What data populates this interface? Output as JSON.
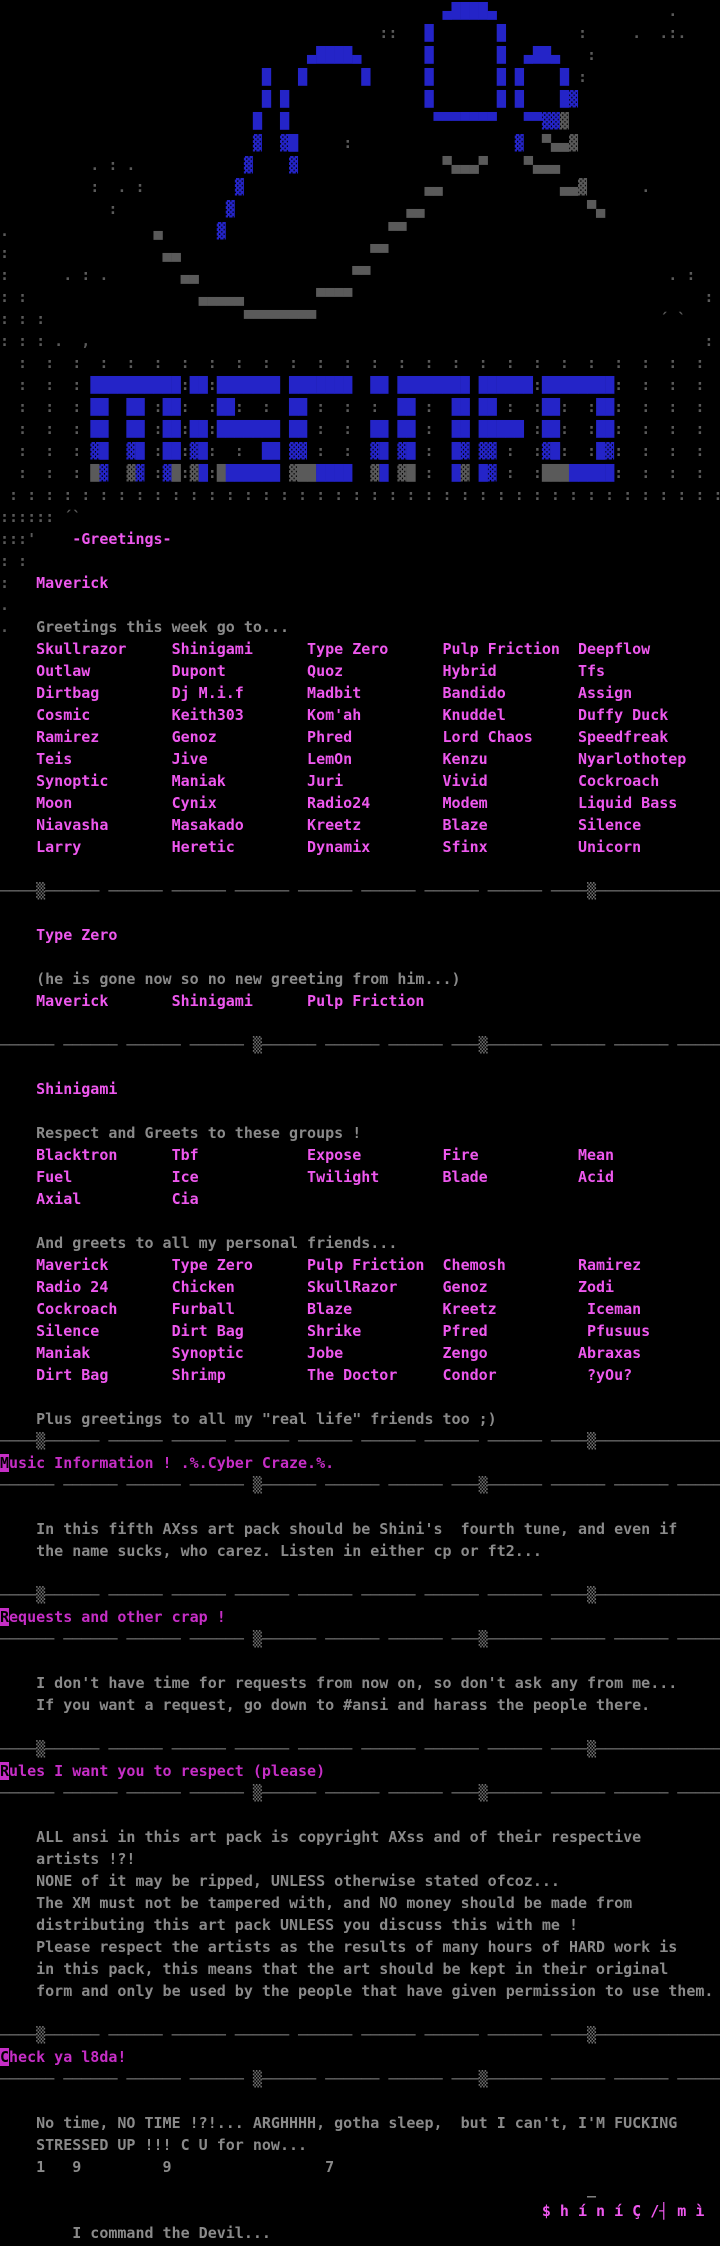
{
  "colors": {
    "background": "#000000",
    "art_blue": "#2424c8",
    "art_grey": "#5a5a5a",
    "text_grey": "#8a8a8a",
    "divider_grey": "#6f6f6f",
    "magenta": "#ee58ee",
    "magenta_deep": "#c62ec6"
  },
  "banner": {
    "title": "MiSC iNFO",
    "grid_unit": "  :",
    "grid_repeat": 26,
    "dense_unit": " :",
    "dense_repeat": 40,
    "letters": [
      "          NNNNNNNNNN NN NNNNNNN NNNNNNN  NN NNNNNNNN NNNNNN NNNNNNNN",
      "          NN  NN  NN    NN      NN          NN    NN NN     NN    NN",
      "          NN  NN  NN NN NNNNNNN NN       NN NN    NN NNNNN  NN    NN",
      "          nN  nN  NN nN      NN nn       nN nN    Nn nn     nN    Nn",
      "          Gn  gn  nG gN GNNNNNN gGGNNNN  gN gG    Ng Nn     GGGNNNNN"
    ]
  },
  "legend": {
    "N": [
      "█",
      "cb"
    ],
    "n": [
      "▓",
      "cb"
    ],
    "M": [
      "▀",
      "cb"
    ],
    "W": [
      "▄",
      "cb"
    ],
    "G": [
      "█",
      "ca"
    ],
    "g": [
      "▓",
      "ca"
    ],
    "T": [
      "▀",
      "ca"
    ],
    "U": [
      "▄",
      "ca"
    ]
  },
  "dividers": {
    "A": "────▒────── ────── ────── ────── ────── ────── ────── ────── ────▒──────────────",
    "B": "────── ────── ────── ────── ▒────── ────── ────── ───▒────── ────── ────── ─────"
  },
  "rows": [
    {
      "k": "a",
      "n": "doodle-art-line",
      "v": "                                                 WNNNNW                   ."
    },
    {
      "k": "a",
      "n": "doodle-art-line",
      "v": "                                          ::   N       N        :     .  .:."
    },
    {
      "k": "a",
      "n": "doodle-art-line",
      "v": "                                  WNNNNW       N       N  WNNW   :"
    },
    {
      "k": "a",
      "n": "doodle-art-line",
      "v": "                             N   N      N      N       N N    N :"
    },
    {
      "k": "a",
      "n": "doodle-art-line",
      "v": "                             N N               N       N N    Nn"
    },
    {
      "k": "a",
      "n": "doodle-art-line",
      "v": "                            N  N                MMMMMMM   MMnng"
    },
    {
      "k": "a",
      "n": "doodle-art-line",
      "v": "                            n  nN     :                  n  TUUg"
    },
    {
      "k": "a",
      "n": "doodle-art-line",
      "v": "          . : .            n    n                TUUUT    TUUU"
    },
    {
      "k": "a",
      "n": "doodle-art-line",
      "v": "          :  . :          n                    UU             UUg      ."
    },
    {
      "k": "a",
      "n": "doodle-art-line",
      "v": "            :            n                   UU                  TU"
    },
    {
      "k": "a",
      "n": "doodle-art-line",
      "v": ".                U      n                  TT"
    },
    {
      "k": "a",
      "n": "doodle-art-line",
      "v": ":                 UU                     TT"
    },
    {
      "k": "a",
      "n": "doodle-art-line",
      "v": ":      . : .        UU                 TT                                 . :"
    },
    {
      "k": "a",
      "n": "doodle-art-line",
      "v": ": :                   UUUUU        TTTT                                       :"
    },
    {
      "k": "a",
      "n": "doodle-art-line",
      "v": ": : :                      TTTTTTTT                                      ´ `"
    },
    {
      "k": "a",
      "n": "doodle-art-line",
      "v": ": : : .  ,                                                                    :"
    },
    {
      "k": "g",
      "n": "banner-grid-line"
    },
    {
      "k": "gl",
      "n": "banner-title-line",
      "v": 0
    },
    {
      "k": "gl",
      "n": "banner-title-line",
      "v": 1
    },
    {
      "k": "gl",
      "n": "banner-title-line",
      "v": 2
    },
    {
      "k": "gl",
      "n": "banner-title-line",
      "v": 3
    },
    {
      "k": "gl",
      "n": "banner-title-line",
      "v": 4
    },
    {
      "k": "gd",
      "n": "banner-grid-dense-line"
    },
    {
      "k": "s",
      "n": "art-remnant-line",
      "v": [
        [
          "a",
          ":::::: ´`"
        ]
      ]
    },
    {
      "k": "s",
      "n": "greetings-label",
      "v": [
        [
          "a",
          ":::'"
        ],
        [
          "m",
          "    -Greetings-"
        ]
      ]
    },
    {
      "k": "s",
      "n": "art-remnant-line",
      "v": [
        [
          "a",
          ": :"
        ]
      ]
    },
    {
      "k": "s",
      "n": "artist-maverick",
      "v": [
        [
          "a",
          ":"
        ],
        [
          "m",
          "   Maverick"
        ]
      ]
    },
    {
      "k": "s",
      "n": "art-remnant-line",
      "v": [
        [
          "a",
          "."
        ]
      ]
    },
    {
      "k": "s",
      "n": "greetings-intro",
      "v": [
        [
          "a",
          "."
        ],
        [
          "t",
          "   Greetings this week go to..."
        ]
      ]
    },
    {
      "k": "s",
      "n": "greetings-names-row",
      "v": [
        [
          "m",
          "    Skullrazor     Shinigami      Type Zero      Pulp Friction  Deepflow"
        ]
      ]
    },
    {
      "k": "s",
      "n": "greetings-names-row",
      "v": [
        [
          "m",
          "    Outlaw         Dupont         Quoz           Hybrid         Tfs"
        ]
      ]
    },
    {
      "k": "s",
      "n": "greetings-names-row",
      "v": [
        [
          "m",
          "    Dirtbag        Dj M.i.f       Madbit         Bandido        Assign"
        ]
      ]
    },
    {
      "k": "s",
      "n": "greetings-names-row",
      "v": [
        [
          "m",
          "    Cosmic         Keith303       Kom'ah         Knuddel        Duffy Duck"
        ]
      ]
    },
    {
      "k": "s",
      "n": "greetings-names-row",
      "v": [
        [
          "m",
          "    Ramirez        Genoz          Phred          Lord Chaos     Speedfreak"
        ]
      ]
    },
    {
      "k": "s",
      "n": "greetings-names-row",
      "v": [
        [
          "m",
          "    Teis           Jive           LemOn          Kenzu          Nyarlothotep"
        ]
      ]
    },
    {
      "k": "s",
      "n": "greetings-names-row",
      "v": [
        [
          "m",
          "    Synoptic       Maniak         Juri           Vivid          Cockroach"
        ]
      ]
    },
    {
      "k": "s",
      "n": "greetings-names-row",
      "v": [
        [
          "m",
          "    Moon           Cynix          Radio24        Modem          Liquid Bass"
        ]
      ]
    },
    {
      "k": "s",
      "n": "greetings-names-row",
      "v": [
        [
          "m",
          "    Niavasha       Masakado       Kreetz         Blaze          Silence"
        ]
      ]
    },
    {
      "k": "s",
      "n": "greetings-names-row",
      "v": [
        [
          "m",
          "    Larry          Heretic        Dynamix        Sfinx          Unicorn"
        ]
      ]
    },
    {
      "k": "b"
    },
    {
      "k": "dv",
      "n": "divider-line",
      "v": "A"
    },
    {
      "k": "b"
    },
    {
      "k": "s",
      "n": "typezero-title",
      "v": [
        [
          "m",
          "    Type Zero"
        ]
      ]
    },
    {
      "k": "b"
    },
    {
      "k": "s",
      "n": "typezero-note",
      "v": [
        [
          "t",
          "    (he is gone now so no new greeting from him...)"
        ]
      ]
    },
    {
      "k": "s",
      "n": "typezero-names-row",
      "v": [
        [
          "m",
          "    Maverick       Shinigami      Pulp Friction"
        ]
      ]
    },
    {
      "k": "b"
    },
    {
      "k": "dv",
      "n": "divider-line",
      "v": "B"
    },
    {
      "k": "b"
    },
    {
      "k": "s",
      "n": "shinigami-title",
      "v": [
        [
          "m",
          "    Shinigami"
        ]
      ]
    },
    {
      "k": "b"
    },
    {
      "k": "s",
      "n": "groups-intro",
      "v": [
        [
          "t",
          "    Respect and Greets to these groups !"
        ]
      ]
    },
    {
      "k": "s",
      "n": "groups-row",
      "v": [
        [
          "m",
          "    Blacktron      Tbf            Expose         Fire           Mean"
        ]
      ]
    },
    {
      "k": "s",
      "n": "groups-row",
      "v": [
        [
          "m",
          "    Fuel           Ice            Twilight       Blade          Acid"
        ]
      ]
    },
    {
      "k": "s",
      "n": "groups-row",
      "v": [
        [
          "m",
          "    Axial          Cia"
        ]
      ]
    },
    {
      "k": "b"
    },
    {
      "k": "s",
      "n": "friends-intro",
      "v": [
        [
          "t",
          "    And greets to all my personal friends..."
        ]
      ]
    },
    {
      "k": "s",
      "n": "friends-row",
      "v": [
        [
          "m",
          "    Maverick       Type Zero      Pulp Friction  Chemosh        Ramirez"
        ]
      ]
    },
    {
      "k": "s",
      "n": "friends-row",
      "v": [
        [
          "m",
          "    Radio 24       Chicken        SkullRazor     Genoz          Zodi"
        ]
      ]
    },
    {
      "k": "s",
      "n": "friends-row",
      "v": [
        [
          "m",
          "    Cockroach      Furball        Blaze          Kreetz          Iceman"
        ]
      ]
    },
    {
      "k": "s",
      "n": "friends-row",
      "v": [
        [
          "m",
          "    Silence        Dirt Bag       Shrike         Pfred           Pfusuus"
        ]
      ]
    },
    {
      "k": "s",
      "n": "friends-row",
      "v": [
        [
          "m",
          "    Maniak         Synoptic       Jobe           Zengo          Abraxas"
        ]
      ]
    },
    {
      "k": "s",
      "n": "friends-row",
      "v": [
        [
          "m",
          "    Dirt Bag       Shrimp         The Doctor     Condor          ?yOu?"
        ]
      ]
    },
    {
      "k": "b"
    },
    {
      "k": "s",
      "n": "real-life-note",
      "v": [
        [
          "t",
          "    Plus greetings to all my \"real life\" friends too ;)"
        ]
      ]
    },
    {
      "k": "dv",
      "n": "divider-line",
      "v": "A"
    },
    {
      "k": "s",
      "n": "music-section-header",
      "v": [
        [
          "i",
          "M"
        ],
        [
          "h",
          "usic Information ! .%.Cyber Craze.%."
        ]
      ]
    },
    {
      "k": "dv",
      "n": "divider-line",
      "v": "B"
    },
    {
      "k": "b"
    },
    {
      "k": "s",
      "n": "music-body-line",
      "v": [
        [
          "t",
          "    In this fifth AXss art pack should be Shini's  fourth tune, and even if"
        ]
      ]
    },
    {
      "k": "s",
      "n": "music-body-line",
      "v": [
        [
          "t",
          "    the name sucks, who carez. Listen in either cp or ft2..."
        ]
      ]
    },
    {
      "k": "b"
    },
    {
      "k": "dv",
      "n": "divider-line",
      "v": "A"
    },
    {
      "k": "s",
      "n": "requests-section-header",
      "v": [
        [
          "i",
          "R"
        ],
        [
          "h",
          "equests and other crap !"
        ]
      ]
    },
    {
      "k": "dv",
      "n": "divider-line",
      "v": "B"
    },
    {
      "k": "b"
    },
    {
      "k": "s",
      "n": "requests-body-line",
      "v": [
        [
          "t",
          "    I don't have time for requests from now on, so don't ask any from me..."
        ]
      ]
    },
    {
      "k": "s",
      "n": "requests-body-line",
      "v": [
        [
          "t",
          "    If you want a request, go down to #ansi and harass the people there."
        ]
      ]
    },
    {
      "k": "b"
    },
    {
      "k": "dv",
      "n": "divider-line",
      "v": "A"
    },
    {
      "k": "s",
      "n": "rules-section-header",
      "v": [
        [
          "i",
          "R"
        ],
        [
          "h",
          "ules I want you to respect (please)"
        ]
      ]
    },
    {
      "k": "dv",
      "n": "divider-line",
      "v": "B"
    },
    {
      "k": "b"
    },
    {
      "k": "s",
      "n": "rules-body-line",
      "v": [
        [
          "t",
          "    ALL ansi in this art pack is copyright AXss and of their respective"
        ]
      ]
    },
    {
      "k": "s",
      "n": "rules-body-line",
      "v": [
        [
          "t",
          "    artists !?!"
        ]
      ]
    },
    {
      "k": "s",
      "n": "rules-body-line",
      "v": [
        [
          "t",
          "    NONE of it may be ripped, UNLESS otherwise stated ofcoz..."
        ]
      ]
    },
    {
      "k": "s",
      "n": "rules-body-line",
      "v": [
        [
          "t",
          "    The XM must not be tampered with, and NO money should be made from"
        ]
      ]
    },
    {
      "k": "s",
      "n": "rules-body-line",
      "v": [
        [
          "t",
          "    distributing this art pack UNLESS you discuss this with me !"
        ]
      ]
    },
    {
      "k": "s",
      "n": "rules-body-line",
      "v": [
        [
          "t",
          "    Please respect the artists as the results of many hours of HARD work is"
        ]
      ]
    },
    {
      "k": "s",
      "n": "rules-body-line",
      "v": [
        [
          "t",
          "    in this pack, this means that the art should be kept in their original"
        ]
      ]
    },
    {
      "k": "s",
      "n": "rules-body-line",
      "v": [
        [
          "t",
          "    form and only be used by the people that have given permission to use them."
        ]
      ]
    },
    {
      "k": "b"
    },
    {
      "k": "dv",
      "n": "divider-line",
      "v": "A"
    },
    {
      "k": "s",
      "n": "checkya-section-header",
      "v": [
        [
          "i",
          "C"
        ],
        [
          "h",
          "heck ya l8da!"
        ]
      ]
    },
    {
      "k": "dv",
      "n": "divider-line",
      "v": "B"
    },
    {
      "k": "b"
    },
    {
      "k": "s",
      "n": "outro-body-line",
      "v": [
        [
          "t",
          "    No time, NO TIME !?!... ARGHHHH, gotha sleep,  but I can't, I'M FUCKING"
        ]
      ]
    },
    {
      "k": "s",
      "n": "outro-body-line",
      "v": [
        [
          "t",
          "    STRESSED UP !!! C U for now..."
        ]
      ]
    },
    {
      "k": "s",
      "n": "year-line",
      "v": [
        [
          "t",
          "    1   9         9                 7"
        ]
      ]
    },
    {
      "k": "s",
      "n": "underscore-line",
      "v": [
        [
          "t",
          "                                                                 _"
        ]
      ]
    },
    {
      "k": "s",
      "n": "signature-line",
      "v": [
        [
          "m",
          "                                                            $ h í n í Ç /┤ m ì"
        ]
      ]
    },
    {
      "k": "s",
      "n": "tagline-line",
      "v": [
        [
          "t",
          "        I command the Devil..."
        ]
      ]
    }
  ]
}
